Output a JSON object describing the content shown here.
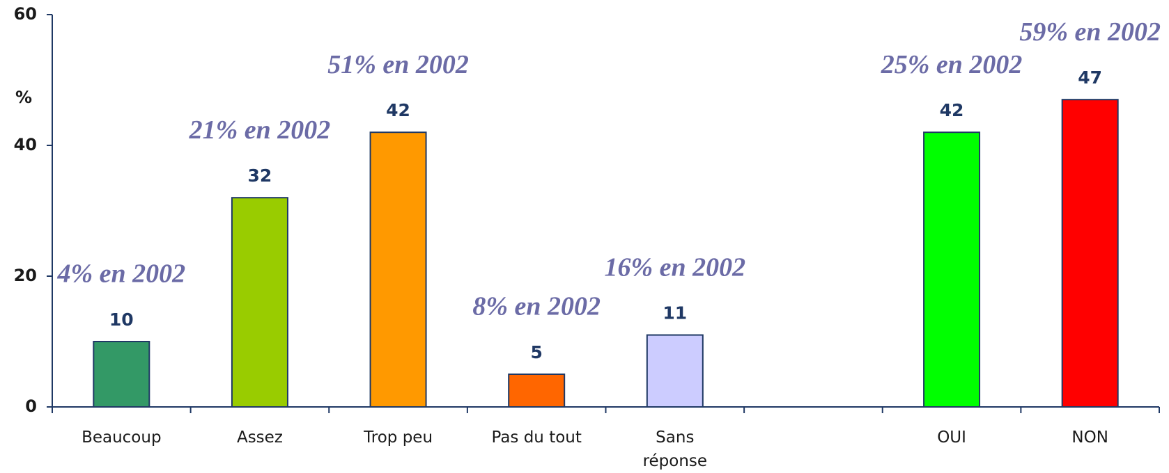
{
  "chart_data": {
    "type": "bar",
    "y_label": "%",
    "categories": [
      "Beaucoup",
      "Assez",
      "Trop peu",
      "Pas du tout",
      "Sans\nréponse",
      null,
      "OUI",
      "NON"
    ],
    "values": [
      10,
      32,
      42,
      5,
      11,
      null,
      42,
      47
    ],
    "colors": [
      "#339966",
      "#99cc00",
      "#ff9900",
      "#ff6600",
      "#ccccff",
      null,
      "#00ff00",
      "#ff0000"
    ],
    "annotations": [
      "4% en 2002",
      "21% en 2002",
      "51% en 2002",
      "8% en 2002",
      "16% en 2002",
      null,
      "25% en 2002",
      "59% en 2002"
    ],
    "ylim": [
      0,
      60
    ],
    "yticks": [
      0,
      20,
      40,
      60
    ],
    "grid": false
  }
}
